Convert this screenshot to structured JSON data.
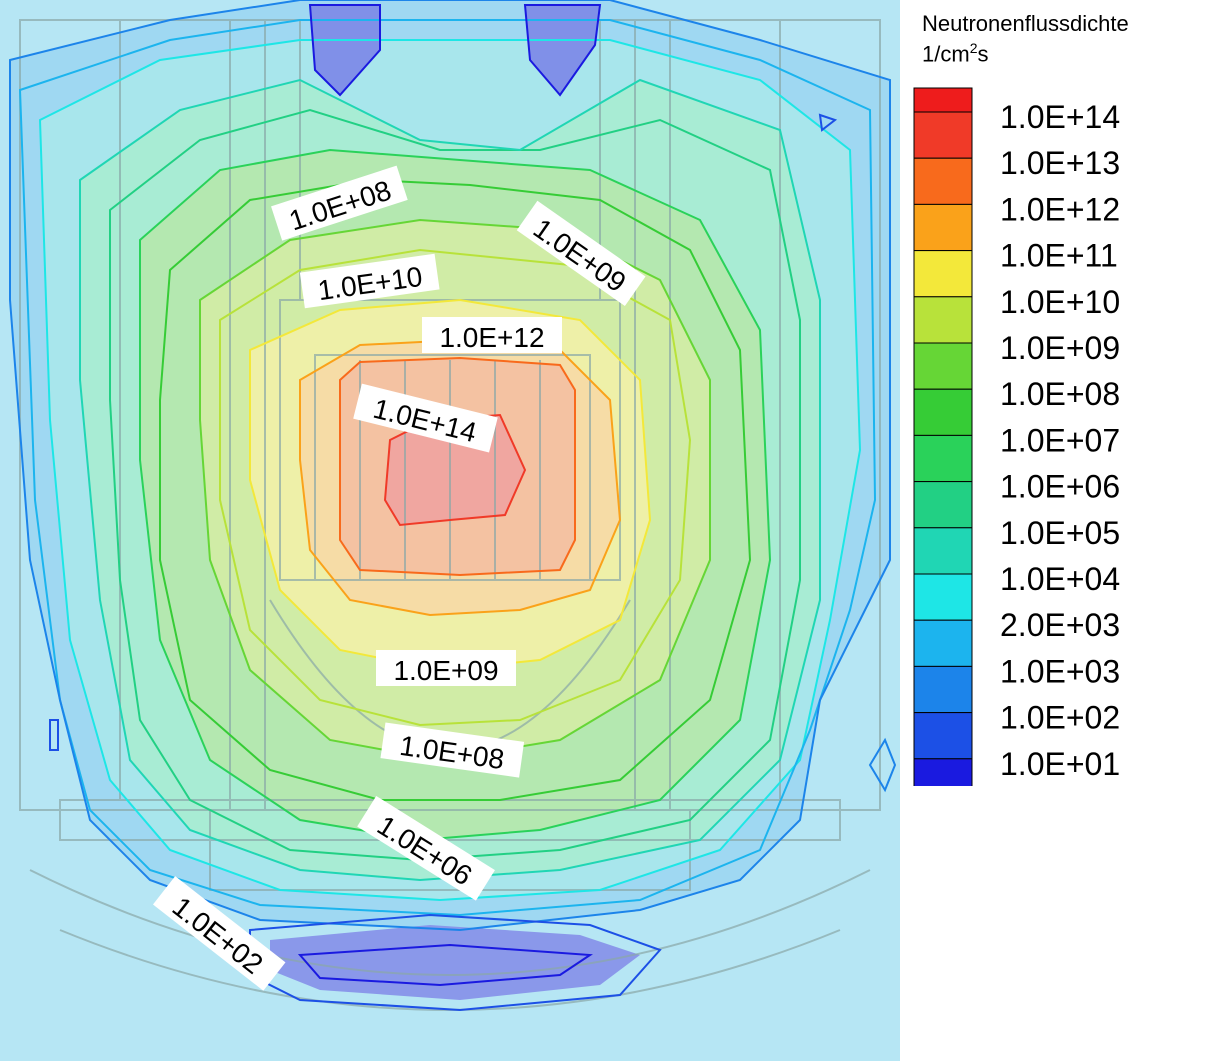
{
  "chart_data": {
    "type": "heatmap",
    "title": "Neutronenflussdichte",
    "unit": "1/cm2s",
    "legend": {
      "placement": "right",
      "levels": [
        {
          "label": "1.0E+14",
          "color": "#f03a28"
        },
        {
          "label": "1.0E+13",
          "color": "#f86a1c"
        },
        {
          "label": "1.0E+12",
          "color": "#faa21a"
        },
        {
          "label": "1.0E+11",
          "color": "#f3e83a"
        },
        {
          "label": "1.0E+10",
          "color": "#b8e23a"
        },
        {
          "label": "1.0E+09",
          "color": "#66d636"
        },
        {
          "label": "1.0E+08",
          "color": "#36cc36"
        },
        {
          "label": "1.0E+07",
          "color": "#2ad25a"
        },
        {
          "label": "1.0E+06",
          "color": "#22d084"
        },
        {
          "label": "1.0E+05",
          "color": "#20d6b4"
        },
        {
          "label": "1.0E+04",
          "color": "#1ee6e6"
        },
        {
          "label": "2.0E+03",
          "color": "#1cb4ee"
        },
        {
          "label": "1.0E+03",
          "color": "#1c84ea"
        },
        {
          "label": "1.0E+02",
          "color": "#1c50e6"
        },
        {
          "label": "1.0E+01",
          "color": "#1a1ae0"
        }
      ]
    },
    "contour_labels": [
      "1.0E+08",
      "1.0E+09",
      "1.0E+10",
      "1.0E+12",
      "1.0E+14",
      "1.0E+09",
      "1.0E+08",
      "1.0E+06",
      "1.0E+02"
    ]
  }
}
